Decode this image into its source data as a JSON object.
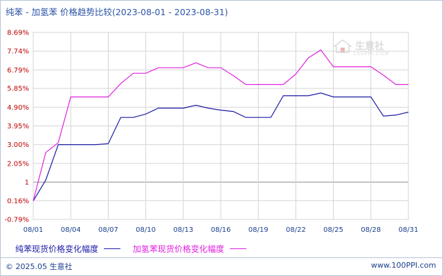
{
  "title": {
    "text": "纯苯 - 加氢苯 价格趋势比较",
    "range": "(2023-08-01 - 2023-08-31)"
  },
  "colors": {
    "series1": "#1a1aa6",
    "series2": "#e020e0",
    "tick_text": "#c00000",
    "x_text": "#1a3f8c",
    "grid": "#d4d4d4",
    "zero_line": "#888888"
  },
  "watermark": {
    "text": "生意社",
    "sub": "100PPI.COM"
  },
  "footer": {
    "copyright": "© 2025.05 生意社",
    "site": "www.100PPI.com"
  },
  "chart_data": {
    "type": "line",
    "y_ticks": [
      {
        "label": "8.69%",
        "value": 8.69
      },
      {
        "label": "7.74%",
        "value": 7.74
      },
      {
        "label": "6.79%",
        "value": 6.79
      },
      {
        "label": "5.85%",
        "value": 5.85
      },
      {
        "label": "4.90%",
        "value": 4.9
      },
      {
        "label": "3.95%",
        "value": 3.95
      },
      {
        "label": "3.00%",
        "value": 3.0
      },
      {
        "label": "2.05%",
        "value": 2.05
      },
      {
        "label": "1",
        "value": 1.1
      },
      {
        "label": "0.16%",
        "value": 0.16
      },
      {
        "label": "-0.79%",
        "value": -0.79
      }
    ],
    "ylim": [
      -0.79,
      8.69
    ],
    "x_ticks": [
      "08/01",
      "08/04",
      "08/07",
      "08/10",
      "08/13",
      "08/16",
      "08/19",
      "08/22",
      "08/25",
      "08/28",
      "08/31"
    ],
    "x_tick_days": [
      1,
      4,
      7,
      10,
      13,
      16,
      19,
      22,
      25,
      28,
      31
    ],
    "xlim": [
      1,
      31
    ],
    "zero_line": 1.1,
    "grid": true,
    "legend_position": "bottom",
    "series": [
      {
        "name": "纯苯现货价格变化幅度",
        "points": [
          [
            1,
            0.15
          ],
          [
            2,
            1.2
          ],
          [
            3,
            3.0
          ],
          [
            4,
            3.0
          ],
          [
            5,
            3.0
          ],
          [
            6,
            3.0
          ],
          [
            7,
            3.05
          ],
          [
            8,
            4.38
          ],
          [
            9,
            4.38
          ],
          [
            10,
            4.55
          ],
          [
            11,
            4.85
          ],
          [
            12,
            4.85
          ],
          [
            13,
            4.85
          ],
          [
            14,
            5.0
          ],
          [
            15,
            4.85
          ],
          [
            16,
            4.75
          ],
          [
            17,
            4.68
          ],
          [
            18,
            4.38
          ],
          [
            19,
            4.38
          ],
          [
            20,
            4.38
          ],
          [
            21,
            5.48
          ],
          [
            22,
            5.48
          ],
          [
            23,
            5.48
          ],
          [
            24,
            5.62
          ],
          [
            25,
            5.42
          ],
          [
            26,
            5.42
          ],
          [
            27,
            5.42
          ],
          [
            28,
            5.42
          ],
          [
            29,
            4.45
          ],
          [
            30,
            4.5
          ],
          [
            31,
            4.65
          ]
        ]
      },
      {
        "name": "加氢苯现货价格变化幅度",
        "points": [
          [
            1,
            0.15
          ],
          [
            2,
            2.6
          ],
          [
            3,
            3.1
          ],
          [
            4,
            5.42
          ],
          [
            5,
            5.42
          ],
          [
            6,
            5.42
          ],
          [
            7,
            5.42
          ],
          [
            8,
            6.1
          ],
          [
            9,
            6.62
          ],
          [
            10,
            6.62
          ],
          [
            11,
            6.9
          ],
          [
            12,
            6.9
          ],
          [
            13,
            6.9
          ],
          [
            14,
            7.15
          ],
          [
            15,
            6.9
          ],
          [
            16,
            6.9
          ],
          [
            17,
            6.5
          ],
          [
            18,
            6.05
          ],
          [
            19,
            6.05
          ],
          [
            20,
            6.05
          ],
          [
            21,
            6.05
          ],
          [
            22,
            6.58
          ],
          [
            23,
            7.4
          ],
          [
            24,
            7.8
          ],
          [
            25,
            6.95
          ],
          [
            26,
            6.95
          ],
          [
            27,
            6.95
          ],
          [
            28,
            6.95
          ],
          [
            29,
            6.52
          ],
          [
            30,
            6.05
          ],
          [
            31,
            6.05
          ]
        ]
      }
    ]
  }
}
